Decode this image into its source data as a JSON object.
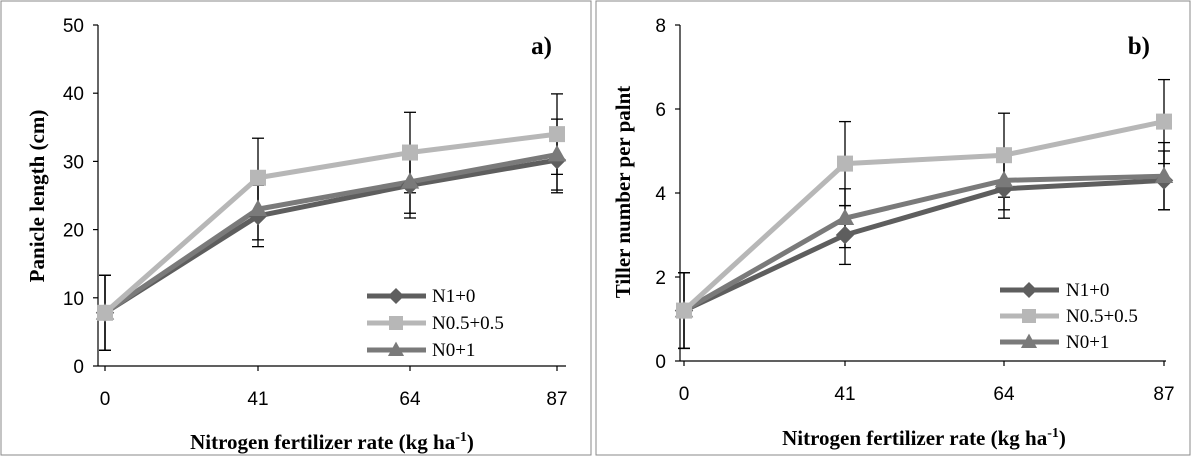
{
  "chart_data": [
    {
      "type": "line",
      "panel_label": "a)",
      "xlabel": "Nitrogen fertilizer rate (kg ha",
      "xlabel_sup": "-1",
      "xlabel_end": ")",
      "ylabel": "Panicle length (cm)",
      "categories": [
        "0",
        "41",
        "64",
        "87"
      ],
      "ylim": [
        0,
        50
      ],
      "yticks": [
        "0",
        "10",
        "20",
        "30",
        "40",
        "50"
      ],
      "grid": false,
      "legend_position": "bottom-right",
      "series": [
        {
          "name": "N1+0",
          "color": "#5e5e5e",
          "marker": "diamond",
          "values": [
            7.8,
            22.0,
            26.5,
            30.2
          ],
          "error_up": [
            5.5,
            4.5,
            4.8,
            4.8
          ]
        },
        {
          "name": "N0.5+0.5",
          "color": "#b7b7b7",
          "marker": "square",
          "values": [
            7.8,
            27.6,
            31.3,
            34.0
          ],
          "error_up": [
            5.5,
            5.8,
            5.9,
            5.9
          ]
        },
        {
          "name": "N0+1",
          "color": "#7a7a7a",
          "marker": "triangle",
          "values": [
            7.8,
            23.0,
            27.0,
            31.0
          ],
          "error_up": [
            5.5,
            4.5,
            4.6,
            5.2
          ]
        }
      ]
    },
    {
      "type": "line",
      "panel_label": "b)",
      "xlabel": "Nitrogen fertilizer rate (kg ha",
      "xlabel_sup": "-1",
      "xlabel_end": ")",
      "ylabel": "Tiller number per palnt",
      "categories": [
        "0",
        "41",
        "64",
        "87"
      ],
      "ylim": [
        0,
        8
      ],
      "yticks": [
        "0",
        "2",
        "4",
        "6",
        "8"
      ],
      "grid": false,
      "legend_position": "bottom-right",
      "series": [
        {
          "name": "N1+0",
          "color": "#5e5e5e",
          "marker": "diamond",
          "values": [
            1.2,
            3.0,
            4.1,
            4.3
          ],
          "error_up": [
            0.9,
            0.7,
            0.7,
            0.7
          ]
        },
        {
          "name": "N0.5+0.5",
          "color": "#b7b7b7",
          "marker": "square",
          "values": [
            1.2,
            4.7,
            4.9,
            5.7
          ],
          "error_up": [
            0.9,
            1.0,
            1.0,
            1.0
          ]
        },
        {
          "name": "N0+1",
          "color": "#7a7a7a",
          "marker": "triangle",
          "values": [
            1.2,
            3.4,
            4.3,
            4.4
          ],
          "error_up": [
            0.9,
            0.7,
            0.7,
            0.8
          ]
        }
      ]
    }
  ]
}
